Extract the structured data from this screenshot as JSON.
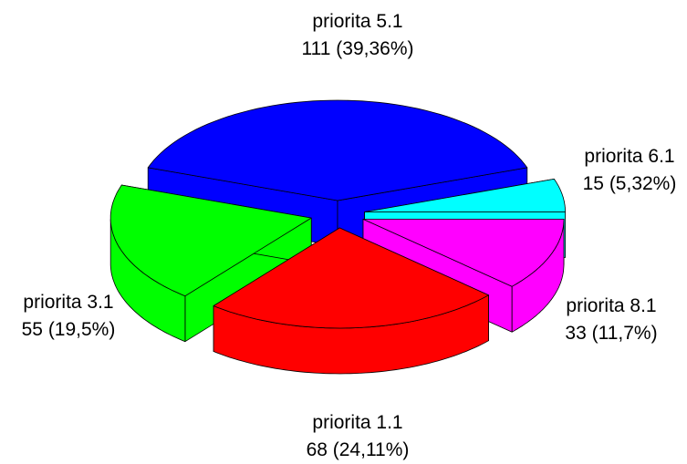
{
  "chart_data": {
    "type": "pie",
    "categories": [
      "priorita 5.1",
      "priorita 6.1",
      "priorita 8.1",
      "priorita 1.1",
      "priorita 3.1"
    ],
    "values": [
      111,
      15,
      33,
      68,
      55
    ],
    "value_labels": [
      "111 (39,36%)",
      "15 (5,32%)",
      "33 (11,7%)",
      "68 (24,11%)",
      "55 (19,5%)"
    ],
    "colors": [
      "#0000ff",
      "#00ffff",
      "#ff00ff",
      "#ff0000",
      "#00ff00"
    ]
  }
}
